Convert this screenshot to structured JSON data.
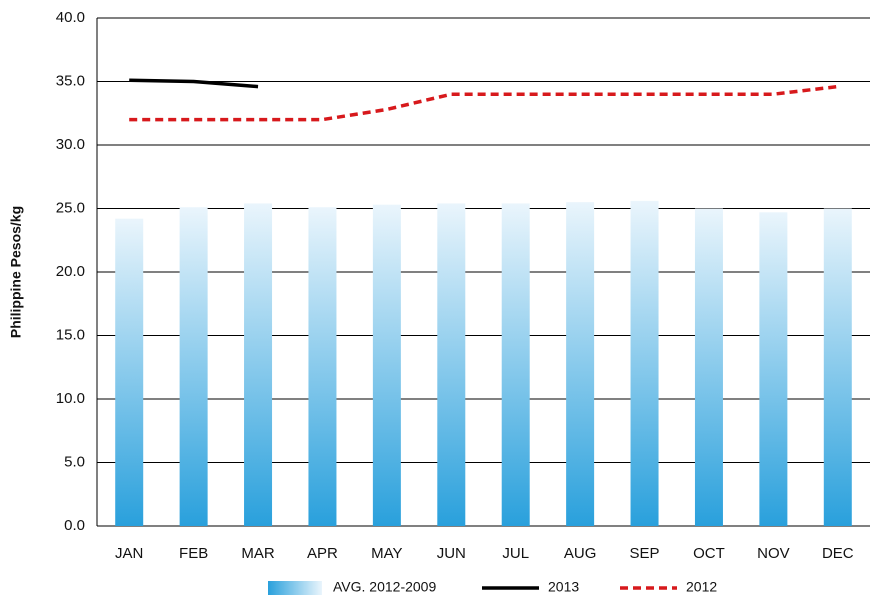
{
  "chart_data": {
    "type": "combo",
    "y_label": "Philippine Pesos/kg",
    "categories": [
      "JAN",
      "FEB",
      "MAR",
      "APR",
      "MAY",
      "JUN",
      "JUL",
      "AUG",
      "SEP",
      "OCT",
      "NOV",
      "DEC"
    ],
    "series": [
      {
        "name": "AVG. 2012-2009",
        "type": "bar",
        "color": "#29a0dc",
        "color_top": "#eaf5fc",
        "values": [
          24.2,
          25.1,
          25.4,
          25.1,
          25.3,
          25.4,
          25.4,
          25.5,
          25.6,
          25.0,
          24.7,
          25.0
        ]
      },
      {
        "name": "2013",
        "type": "line",
        "color": "#000000",
        "dashed": false,
        "values": [
          35.1,
          35.0,
          34.6,
          null,
          null,
          null,
          null,
          null,
          null,
          null,
          null,
          null
        ]
      },
      {
        "name": "2012",
        "type": "line",
        "color": "#d7191c",
        "dashed": true,
        "values": [
          32.0,
          32.0,
          32.0,
          32.0,
          32.8,
          34.0,
          34.0,
          34.0,
          34.0,
          34.0,
          34.0,
          34.6
        ]
      }
    ],
    "ylim": [
      0,
      40
    ],
    "yticks": [
      {
        "value": 0,
        "label": "0.0"
      },
      {
        "value": 5,
        "label": "5.0"
      },
      {
        "value": 10,
        "label": "10.0"
      },
      {
        "value": 15,
        "label": "15.0"
      },
      {
        "value": 20,
        "label": "20.0"
      },
      {
        "value": 25,
        "label": "25.0"
      },
      {
        "value": 30,
        "label": "30.0"
      },
      {
        "value": 35,
        "label": "35.0"
      },
      {
        "value": 40,
        "label": "40.0"
      }
    ],
    "grid": true,
    "legend": "bottom"
  }
}
